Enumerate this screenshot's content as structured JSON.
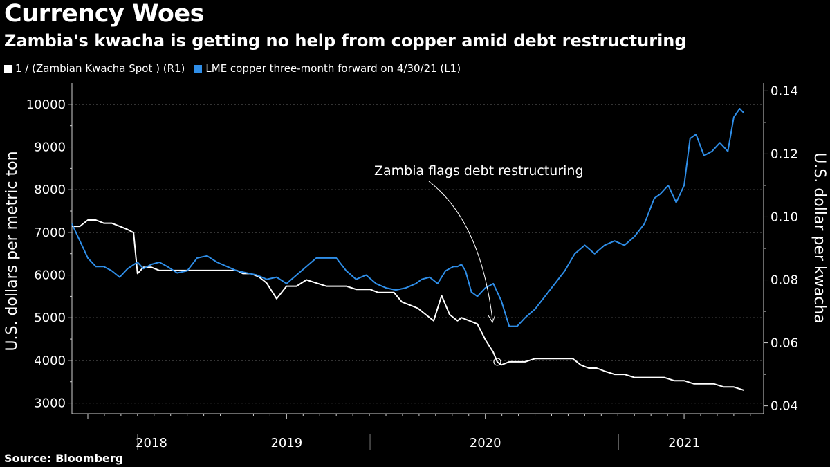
{
  "title": "Currency Woes",
  "subtitle": "Zambia's kwacha is getting no help from copper amid debt restructuring",
  "source": "Source: Bloomberg",
  "legend": [
    {
      "label": "1 / (Zambian Kwacha Spot ) (R1)",
      "color": "#ffffff"
    },
    {
      "label": "LME copper three-month forward on 4/30/21 (L1)",
      "color": "#2f8ee8"
    }
  ],
  "chart_data": {
    "type": "line",
    "xlabel": "",
    "ylabel_left": "U.S. dollars per metric ton",
    "ylabel_right": "U.S. dollar per kwacha",
    "ylim_left": [
      2750,
      10500
    ],
    "ylim_right": [
      0.0375,
      0.1425
    ],
    "yticks_left": [
      3000,
      4000,
      5000,
      6000,
      7000,
      8000,
      9000,
      10000
    ],
    "yticks_left_labels": [
      "3000",
      "4000",
      "5000",
      "6000",
      "7000",
      "8000",
      "9000",
      "10000"
    ],
    "yticks_right": [
      0.04,
      0.06,
      0.08,
      0.1,
      0.12,
      0.14
    ],
    "yticks_right_labels": [
      "0.04",
      "0.06",
      "0.08",
      "0.10",
      "0.12",
      "0.14"
    ],
    "xlim": [
      2017.92,
      2021.4
    ],
    "year_labels": [
      {
        "label": "2018",
        "x": 2018.32
      },
      {
        "label": "2019",
        "x": 2019.0
      },
      {
        "label": "2020",
        "x": 2020.0
      },
      {
        "label": "2021",
        "x": 2021.0
      }
    ],
    "year_dividers": [
      2018.25,
      2019.42,
      2020.67
    ],
    "annotation": {
      "text": "Zambia flags debt restructuring",
      "date": 2020.06,
      "value": 0.054
    },
    "series": [
      {
        "name": "1 / (Zambian Kwacha Spot ) (R1)",
        "axis": "right",
        "color": "#ffffff",
        "x": [
          2017.92,
          2017.96,
          2018.0,
          2018.04,
          2018.08,
          2018.12,
          2018.16,
          2018.2,
          2018.23,
          2018.25,
          2018.28,
          2018.32,
          2018.36,
          2018.4,
          2018.45,
          2018.5,
          2018.55,
          2018.6,
          2018.65,
          2018.7,
          2018.75,
          2018.78,
          2018.82,
          2018.86,
          2018.9,
          2018.95,
          2019.0,
          2019.05,
          2019.1,
          2019.15,
          2019.2,
          2019.25,
          2019.3,
          2019.35,
          2019.38,
          2019.42,
          2019.46,
          2019.5,
          2019.54,
          2019.58,
          2019.62,
          2019.66,
          2019.7,
          2019.74,
          2019.78,
          2019.82,
          2019.86,
          2019.88,
          2019.92,
          2019.96,
          2020.0,
          2020.04,
          2020.06,
          2020.08,
          2020.12,
          2020.16,
          2020.2,
          2020.25,
          2020.3,
          2020.35,
          2020.4,
          2020.44,
          2020.48,
          2020.52,
          2020.56,
          2020.6,
          2020.65,
          2020.7,
          2020.75,
          2020.8,
          2020.85,
          2020.9,
          2020.95,
          2021.0,
          2021.05,
          2021.1,
          2021.15,
          2021.2,
          2021.25,
          2021.3
        ],
        "values": [
          0.097,
          0.097,
          0.099,
          0.099,
          0.098,
          0.098,
          0.097,
          0.096,
          0.095,
          0.082,
          0.084,
          0.084,
          0.083,
          0.083,
          0.083,
          0.083,
          0.083,
          0.083,
          0.083,
          0.083,
          0.083,
          0.082,
          0.082,
          0.081,
          0.079,
          0.074,
          0.078,
          0.078,
          0.08,
          0.079,
          0.078,
          0.078,
          0.078,
          0.077,
          0.077,
          0.077,
          0.076,
          0.076,
          0.076,
          0.073,
          0.072,
          0.071,
          0.069,
          0.067,
          0.075,
          0.069,
          0.067,
          0.068,
          0.067,
          0.066,
          0.061,
          0.057,
          0.054,
          0.053,
          0.054,
          0.054,
          0.054,
          0.055,
          0.055,
          0.055,
          0.055,
          0.055,
          0.053,
          0.052,
          0.052,
          0.051,
          0.05,
          0.05,
          0.049,
          0.049,
          0.049,
          0.049,
          0.048,
          0.048,
          0.047,
          0.047,
          0.047,
          0.046,
          0.046,
          0.045
        ]
      },
      {
        "name": "LME copper three-month forward on 4/30/21 (L1)",
        "axis": "left",
        "color": "#2f8ee8",
        "x": [
          2017.92,
          2017.96,
          2018.0,
          2018.04,
          2018.08,
          2018.12,
          2018.16,
          2018.2,
          2018.25,
          2018.28,
          2018.32,
          2018.36,
          2018.4,
          2018.45,
          2018.5,
          2018.55,
          2018.6,
          2018.65,
          2018.7,
          2018.75,
          2018.8,
          2018.85,
          2018.9,
          2018.95,
          2019.0,
          2019.05,
          2019.1,
          2019.15,
          2019.2,
          2019.25,
          2019.3,
          2019.35,
          2019.4,
          2019.45,
          2019.5,
          2019.55,
          2019.6,
          2019.65,
          2019.68,
          2019.72,
          2019.76,
          2019.8,
          2019.84,
          2019.86,
          2019.88,
          2019.9,
          2019.93,
          2019.96,
          2020.0,
          2020.04,
          2020.08,
          2020.12,
          2020.16,
          2020.2,
          2020.25,
          2020.3,
          2020.35,
          2020.4,
          2020.45,
          2020.5,
          2020.55,
          2020.6,
          2020.65,
          2020.7,
          2020.75,
          2020.8,
          2020.85,
          2020.88,
          2020.92,
          2020.96,
          2021.0,
          2021.03,
          2021.06,
          2021.1,
          2021.14,
          2021.18,
          2021.22,
          2021.25,
          2021.28,
          2021.3
        ],
        "values": [
          7200,
          6800,
          6400,
          6200,
          6200,
          6100,
          5950,
          6150,
          6300,
          6150,
          6250,
          6300,
          6200,
          6050,
          6100,
          6400,
          6450,
          6300,
          6200,
          6100,
          6050,
          6000,
          5900,
          5950,
          5800,
          6000,
          6200,
          6400,
          6400,
          6400,
          6100,
          5900,
          6000,
          5800,
          5700,
          5650,
          5700,
          5800,
          5900,
          5950,
          5800,
          6100,
          6200,
          6200,
          6250,
          6100,
          5600,
          5500,
          5700,
          5800,
          5400,
          4800,
          4800,
          5000,
          5200,
          5500,
          5800,
          6100,
          6500,
          6700,
          6500,
          6700,
          6800,
          6700,
          6900,
          7200,
          7800,
          7900,
          8100,
          7700,
          8100,
          9200,
          9300,
          8800,
          8900,
          9100,
          8900,
          9700,
          9900,
          9800
        ]
      }
    ]
  }
}
